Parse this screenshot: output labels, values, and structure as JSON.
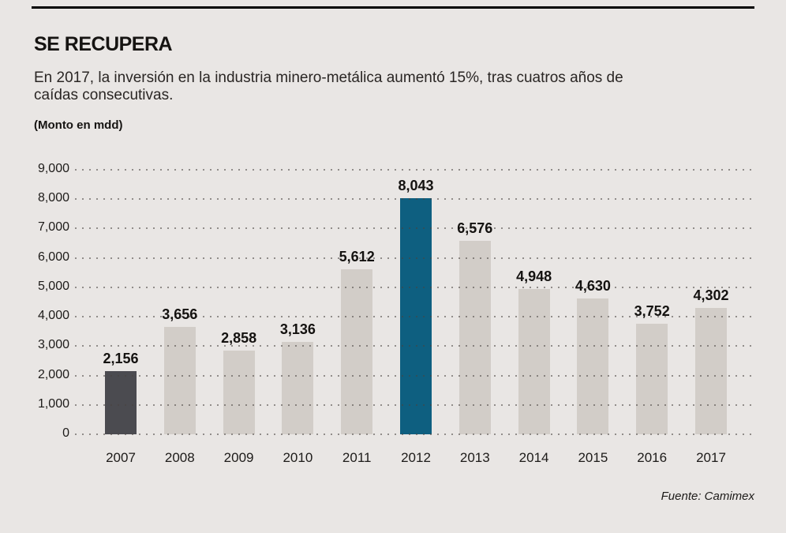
{
  "header": {
    "title": "SE RECUPERA",
    "subtitle": "En 2017, la inversión en la industria minero-metálica aumentó 15%, tras cuatros años de caídas consecutivas.",
    "unit_label": "(Monto en mdd)"
  },
  "footer": {
    "source": "Fuente: Camimex"
  },
  "chart_data": {
    "type": "bar",
    "title": "SE RECUPERA",
    "ylabel": "(Monto en mdd)",
    "categories": [
      "2007",
      "2008",
      "2009",
      "2010",
      "2011",
      "2012",
      "2013",
      "2014",
      "2015",
      "2016",
      "2017"
    ],
    "values": [
      2156,
      3656,
      2858,
      3136,
      5612,
      8043,
      6576,
      4948,
      4630,
      3752,
      4302
    ],
    "value_labels": [
      "2,156",
      "3,656",
      "2,858",
      "3,136",
      "5,612",
      "8,043",
      "6,576",
      "4,948",
      "4,630",
      "3,752",
      "4,302"
    ],
    "ylim": [
      0,
      9000
    ],
    "ytick_interval": 1000,
    "ytick_labels": [
      "0",
      "1,000",
      "2,000",
      "3,000",
      "4,000",
      "5,000",
      "6,000",
      "7,000",
      "8,000",
      "9,000"
    ],
    "grid": "dotted horizontal gridlines drawn over bars",
    "legend": "none",
    "colors": {
      "background": "#e9e6e4",
      "bar_default": "#d2cdc8",
      "bar_dark_2007": "#4b4b50",
      "bar_accent_2012": "#0e5f80",
      "text": "#1d1b19"
    },
    "highlighted_bars": {
      "dark_index": 0,
      "accent_index": 5
    }
  }
}
